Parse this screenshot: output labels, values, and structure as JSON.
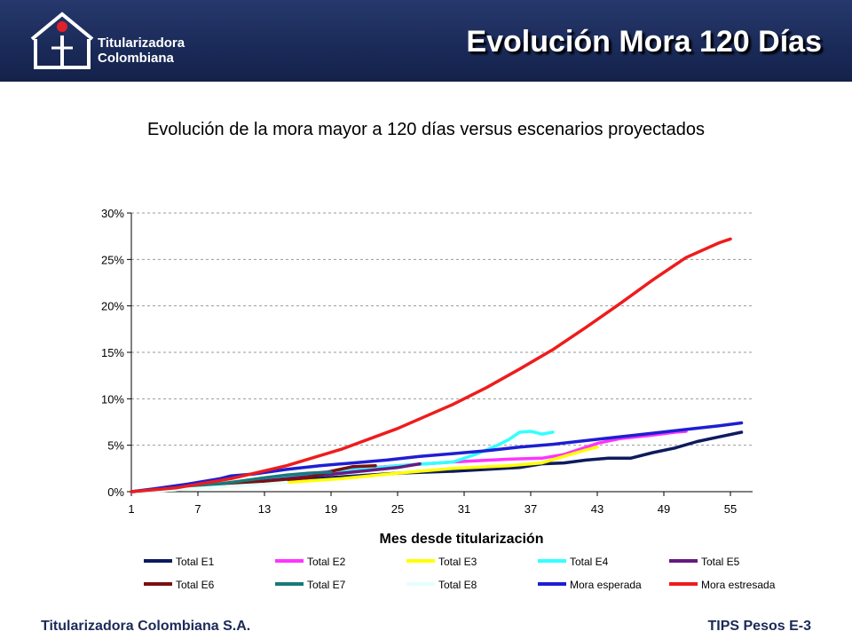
{
  "header": {
    "title": "Evolución Mora 120 Días",
    "logo_line1": "Titularizadora",
    "logo_line2": "Colombiana"
  },
  "footer": {
    "left": "Titularizadora Colombiana S.A.",
    "right": "TIPS Pesos E-3"
  },
  "chart_data": {
    "type": "line",
    "title": "Evolución de la mora mayor a 120 días versus escenarios proyectados",
    "xlabel": "Mes desde titularización",
    "ylabel": "",
    "xlim": [
      1,
      57
    ],
    "ylim": [
      0,
      0.3
    ],
    "xticks": [
      1,
      7,
      13,
      19,
      25,
      31,
      37,
      43,
      49,
      55
    ],
    "yticks": [
      0,
      0.05,
      0.1,
      0.15,
      0.2,
      0.25,
      0.3
    ],
    "ytick_labels": [
      "0%",
      "5%",
      "10%",
      "15%",
      "20%",
      "25%",
      "30%"
    ],
    "grid": "horizontal dashed",
    "legend": "bottom",
    "series": [
      {
        "name": "Total E1",
        "color": "#0d1b5e",
        "x": [
          1,
          5,
          10,
          15,
          20,
          25,
          30,
          33,
          36,
          38,
          40,
          42,
          44,
          46,
          48,
          50,
          52,
          54,
          56
        ],
        "y": [
          0,
          0.002,
          0.007,
          0.012,
          0.016,
          0.02,
          0.022,
          0.024,
          0.026,
          0.03,
          0.031,
          0.034,
          0.036,
          0.036,
          0.042,
          0.047,
          0.054,
          0.059,
          0.064
        ]
      },
      {
        "name": "Total E2",
        "color": "#ff33ff",
        "x": [
          1,
          5,
          10,
          15,
          20,
          25,
          30,
          35,
          38,
          40,
          43,
          45,
          48,
          50,
          51
        ],
        "y": [
          0,
          0.003,
          0.009,
          0.017,
          0.023,
          0.028,
          0.032,
          0.035,
          0.036,
          0.04,
          0.052,
          0.057,
          0.061,
          0.064,
          0.065
        ]
      },
      {
        "name": "Total E3",
        "color": "#ffff00",
        "x": [
          1,
          5,
          10,
          15,
          20,
          25,
          30,
          35,
          38,
          40,
          42,
          43
        ],
        "y": [
          0,
          0.002,
          0.006,
          0.01,
          0.014,
          0.02,
          0.025,
          0.028,
          0.031,
          0.038,
          0.045,
          0.048
        ]
      },
      {
        "name": "Total E4",
        "color": "#33ffff",
        "x": [
          1,
          5,
          10,
          15,
          20,
          25,
          30,
          32,
          34,
          35,
          36,
          37,
          38,
          39
        ],
        "y": [
          0,
          0.002,
          0.008,
          0.015,
          0.022,
          0.028,
          0.032,
          0.04,
          0.05,
          0.056,
          0.064,
          0.065,
          0.062,
          0.064
        ]
      },
      {
        "name": "Total E5",
        "color": "#661a80",
        "x": [
          1,
          5,
          10,
          15,
          20,
          25,
          27
        ],
        "y": [
          0,
          0.003,
          0.008,
          0.014,
          0.02,
          0.026,
          0.03
        ]
      },
      {
        "name": "Total E6",
        "color": "#7a1010",
        "x": [
          1,
          5,
          10,
          13,
          15,
          17,
          19,
          21,
          23
        ],
        "y": [
          0,
          0.003,
          0.008,
          0.011,
          0.013,
          0.015,
          0.022,
          0.027,
          0.028
        ]
      },
      {
        "name": "Total E7",
        "color": "#167a7a",
        "x": [
          1,
          5,
          10,
          13,
          15,
          17,
          19
        ],
        "y": [
          0,
          0.003,
          0.01,
          0.015,
          0.018,
          0.02,
          0.021
        ]
      },
      {
        "name": "Total E8",
        "color": "#e6ffff",
        "x": [
          1,
          5,
          10,
          13,
          15
        ],
        "y": [
          0,
          0.002,
          0.006,
          0.008,
          0.01
        ]
      },
      {
        "name": "Mora esperada",
        "color": "#1e1ed2",
        "x": [
          1,
          3,
          6,
          9,
          10,
          12,
          15,
          18,
          21,
          24,
          27,
          30,
          33,
          36,
          39,
          42,
          45,
          48,
          51,
          54,
          56
        ],
        "y": [
          0,
          0.003,
          0.008,
          0.014,
          0.017,
          0.019,
          0.024,
          0.028,
          0.031,
          0.034,
          0.038,
          0.041,
          0.044,
          0.048,
          0.051,
          0.055,
          0.059,
          0.063,
          0.067,
          0.071,
          0.074
        ]
      },
      {
        "name": "Mora estresada",
        "color": "#ee1c1c",
        "x": [
          1,
          5,
          10,
          15,
          20,
          25,
          30,
          33,
          36,
          39,
          42,
          45,
          48,
          51,
          54,
          55
        ],
        "y": [
          0,
          0.004,
          0.014,
          0.028,
          0.046,
          0.068,
          0.094,
          0.112,
          0.132,
          0.153,
          0.177,
          0.202,
          0.228,
          0.252,
          0.268,
          0.272
        ]
      }
    ]
  }
}
